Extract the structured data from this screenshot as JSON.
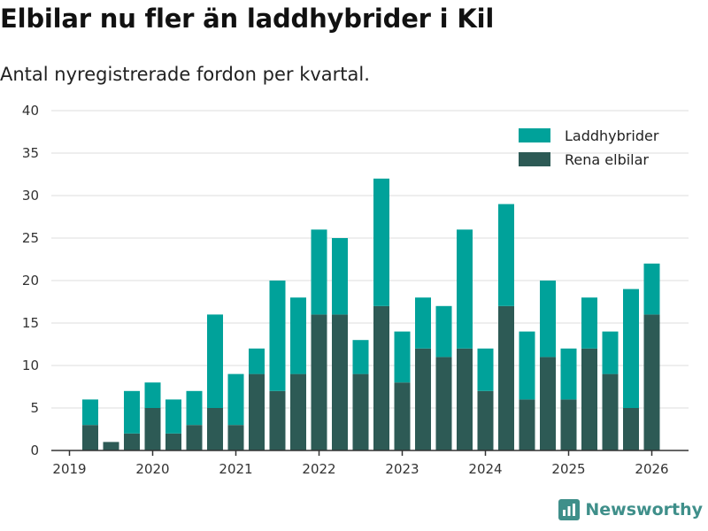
{
  "header": {
    "title": "Elbilar nu fler än laddhybrider i Kil",
    "subtitle": "Antal nyregistrerade fordon per kvartal."
  },
  "branding": {
    "name": "Newsworthy"
  },
  "colors": {
    "laddhybrider": "#00a29a",
    "rena_elbilar": "#2d5a55",
    "grid": "#dddddd",
    "axis": "#333333"
  },
  "chart_data": {
    "type": "bar",
    "stacked": true,
    "title": "Elbilar nu fler än laddhybrider i Kil",
    "subtitle": "Antal nyregistrerade fordon per kvartal.",
    "xlabel": "",
    "ylabel": "",
    "ylim": [
      0,
      40
    ],
    "yticks": [
      0,
      5,
      10,
      15,
      20,
      25,
      30,
      35,
      40
    ],
    "xticks": [
      "2019",
      "2020",
      "2021",
      "2022",
      "2023",
      "2024",
      "2025",
      "2026"
    ],
    "grid": true,
    "legend_position": "top-right",
    "categories": [
      "2019 Q2",
      "2019 Q3",
      "2019 Q4",
      "2020 Q1",
      "2020 Q2",
      "2020 Q3",
      "2020 Q4",
      "2021 Q1",
      "2021 Q2",
      "2021 Q3",
      "2021 Q4",
      "2022 Q1",
      "2022 Q2",
      "2022 Q3",
      "2022 Q4",
      "2023 Q1",
      "2023 Q2",
      "2023 Q3",
      "2023 Q4",
      "2024 Q1",
      "2024 Q2",
      "2024 Q3",
      "2024 Q4",
      "2025 Q1",
      "2025 Q2",
      "2025 Q3",
      "2025 Q4",
      "2026 Q1"
    ],
    "series": [
      {
        "name": "Rena elbilar",
        "values": [
          3,
          1,
          2,
          5,
          2,
          3,
          5,
          3,
          9,
          7,
          9,
          16,
          16,
          9,
          17,
          8,
          12,
          11,
          12,
          7,
          17,
          6,
          11,
          6,
          12,
          9,
          5,
          16
        ]
      },
      {
        "name": "Laddhybrider",
        "values": [
          3,
          0,
          5,
          3,
          4,
          4,
          11,
          6,
          3,
          13,
          9,
          10,
          9,
          4,
          15,
          6,
          6,
          6,
          14,
          5,
          12,
          8,
          9,
          6,
          6,
          5,
          14,
          6
        ]
      }
    ]
  }
}
